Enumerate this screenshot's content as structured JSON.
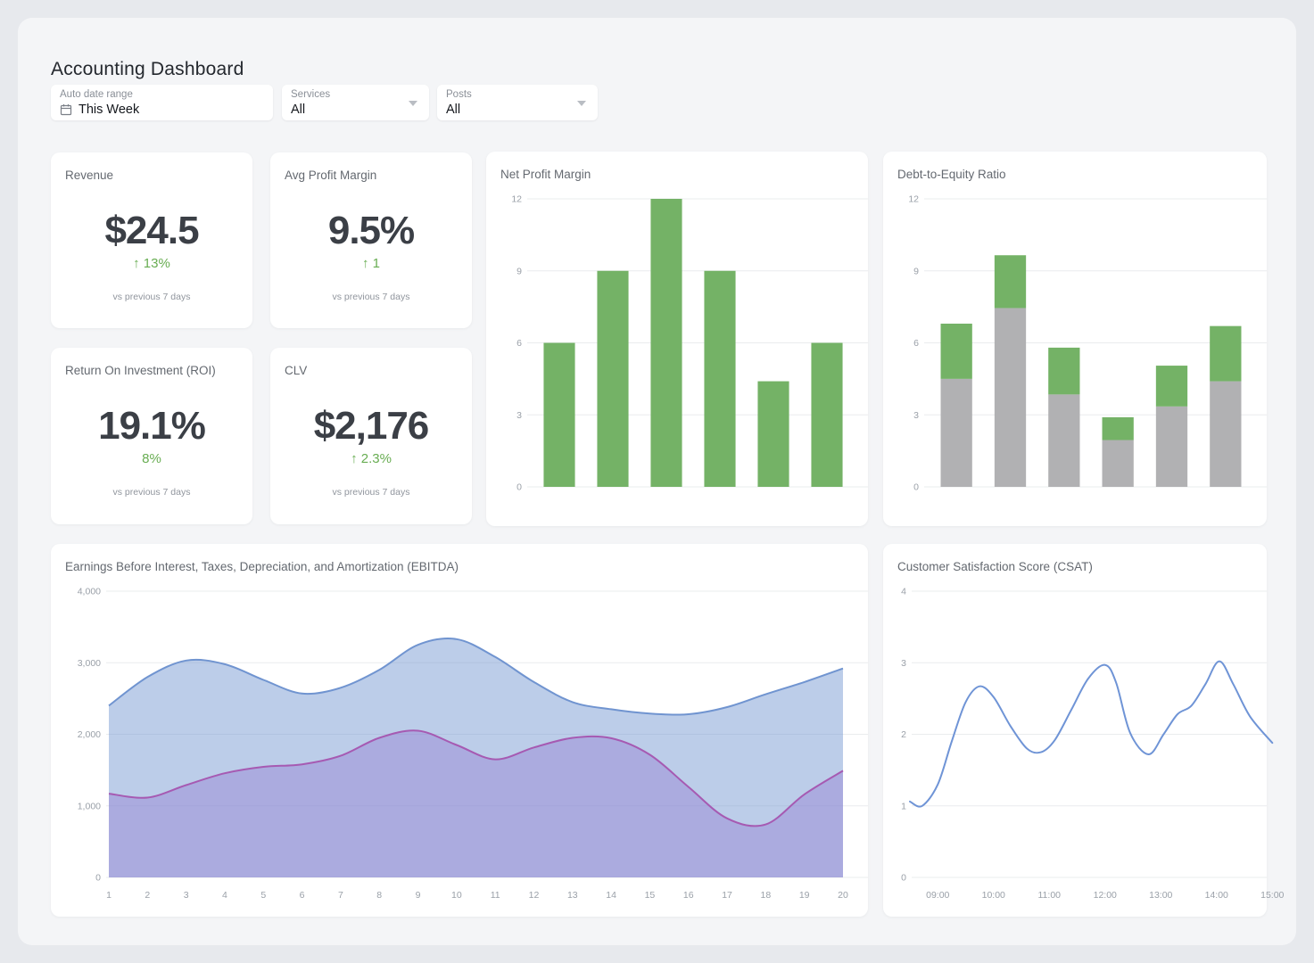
{
  "header": {
    "title": "Accounting Dashboard"
  },
  "filters": {
    "date": {
      "label": "Auto date range",
      "value": "This Week"
    },
    "services": {
      "label": "Services",
      "value": "All"
    },
    "posts": {
      "label": "Posts",
      "value": "All"
    }
  },
  "kpis": [
    {
      "title": "Revenue",
      "value": "$24.5",
      "delta": "↑ 13%",
      "note": "vs previous 7 days"
    },
    {
      "title": "Avg Profit Margin",
      "value": "9.5%",
      "delta": "↑ 1",
      "note": "vs previous 7 days"
    },
    {
      "title": "Return On Investment (ROI)",
      "value": "19.1%",
      "delta": "8%",
      "note": "vs previous 7 days"
    },
    {
      "title": "CLV",
      "value": "$2,176",
      "delta": "↑ 2.3%",
      "note": "vs previous 7 days"
    }
  ],
  "colors": {
    "positive_delta": "#68ad52",
    "bar_green": "#74b266",
    "bar_gray": "#b1b1b3",
    "area_blue_line": "#7094d0",
    "area_blue_fill": "#b9cce9",
    "area_purple_line": "#a65ab2",
    "area_purple_fill": "#afb2db",
    "csat_line": "#6f94d6",
    "grid_line": "#eaecee"
  },
  "chart_data": [
    {
      "id": "net-profit-margin",
      "type": "bar",
      "title": "Net Profit Margin",
      "values": [
        6,
        9,
        12,
        9,
        4.4,
        6
      ],
      "bar_color": "#74b266",
      "ylim": [
        0,
        12
      ],
      "yticks": [
        0,
        3,
        6,
        9,
        12
      ],
      "grid": "on",
      "legend": "none",
      "xlabel": "",
      "ylabel": ""
    },
    {
      "id": "debt-to-equity-ratio",
      "type": "bar",
      "stacked": true,
      "title": "Debt-to-Equity Ratio",
      "series": [
        {
          "name": "bottom-segment",
          "color": "#b1b1b3",
          "values": [
            4.5,
            7.45,
            3.85,
            1.95,
            3.35,
            4.4
          ]
        },
        {
          "name": "top-segment",
          "color": "#74b266",
          "values": [
            2.3,
            2.2,
            1.95,
            0.95,
            1.7,
            2.3
          ]
        }
      ],
      "ylim": [
        0,
        12
      ],
      "yticks": [
        0,
        3,
        6,
        9,
        12
      ],
      "grid": "on",
      "legend": "none"
    },
    {
      "id": "ebitda",
      "type": "area",
      "title": "Earnings Before Interest, Taxes, Depreciation, and Amortization (EBITDA)",
      "x": [
        1,
        2,
        3,
        4,
        5,
        6,
        7,
        8,
        9,
        10,
        11,
        12,
        13,
        14,
        15,
        16,
        17,
        18,
        19,
        20
      ],
      "xticks": [
        "1",
        "2",
        "3",
        "4",
        "5",
        "6",
        "7",
        "8",
        "9",
        "10",
        "11",
        "12",
        "13",
        "14",
        "15",
        "16",
        "17",
        "18",
        "19",
        "20"
      ],
      "series": [
        {
          "name": "series-1",
          "line_color": "#7094d0",
          "fill_color": "rgba(112,148,208,0.47)",
          "values": [
            2400,
            2800,
            3030,
            2980,
            2760,
            2570,
            2650,
            2900,
            3250,
            3330,
            3080,
            2730,
            2450,
            2350,
            2290,
            2280,
            2380,
            2560,
            2730,
            2920
          ]
        },
        {
          "name": "series-2",
          "line_color": "#a65ab2",
          "fill_color": "rgba(140,110,205,0.35)",
          "values": [
            1170,
            1115,
            1290,
            1455,
            1545,
            1580,
            1700,
            1950,
            2050,
            1850,
            1650,
            1815,
            1950,
            1945,
            1715,
            1265,
            825,
            740,
            1160,
            1490
          ]
        }
      ],
      "ylim": [
        0,
        4000
      ],
      "yticks": [
        {
          "v": 0,
          "label": "0"
        },
        {
          "v": 1000,
          "label": "1,000"
        },
        {
          "v": 2000,
          "label": "2,000"
        },
        {
          "v": 3000,
          "label": "3,000"
        },
        {
          "v": 4000,
          "label": "4,000"
        }
      ],
      "grid": "on",
      "legend": "none"
    },
    {
      "id": "customer-satisfaction-score",
      "type": "line",
      "title": "Customer Satisfaction Score (CSAT)",
      "line_color": "#6f94d6",
      "points": [
        [
          8.5,
          1.06
        ],
        [
          8.72,
          1.0
        ],
        [
          9.0,
          1.3
        ],
        [
          9.25,
          1.9
        ],
        [
          9.5,
          2.45
        ],
        [
          9.75,
          2.67
        ],
        [
          10.0,
          2.52
        ],
        [
          10.3,
          2.12
        ],
        [
          10.6,
          1.8
        ],
        [
          10.85,
          1.75
        ],
        [
          11.1,
          1.92
        ],
        [
          11.4,
          2.35
        ],
        [
          11.7,
          2.78
        ],
        [
          12.0,
          2.97
        ],
        [
          12.2,
          2.72
        ],
        [
          12.45,
          2.02
        ],
        [
          12.78,
          1.72
        ],
        [
          13.05,
          2.0
        ],
        [
          13.3,
          2.28
        ],
        [
          13.55,
          2.4
        ],
        [
          13.8,
          2.7
        ],
        [
          14.05,
          3.02
        ],
        [
          14.3,
          2.7
        ],
        [
          14.6,
          2.25
        ],
        [
          15.0,
          1.88
        ]
      ],
      "xlim": [
        8.5,
        14.9
      ],
      "xticks": [
        {
          "v": 9,
          "label": "09:00"
        },
        {
          "v": 10,
          "label": "10:00"
        },
        {
          "v": 11,
          "label": "11:00"
        },
        {
          "v": 12,
          "label": "12:00"
        },
        {
          "v": 13,
          "label": "13:00"
        },
        {
          "v": 14,
          "label": "14:00"
        },
        {
          "v": 15,
          "label": "15:00"
        }
      ],
      "ylim": [
        0,
        4
      ],
      "yticks": [
        0,
        1,
        2,
        3,
        4
      ],
      "grid": "on",
      "legend": "none"
    }
  ]
}
